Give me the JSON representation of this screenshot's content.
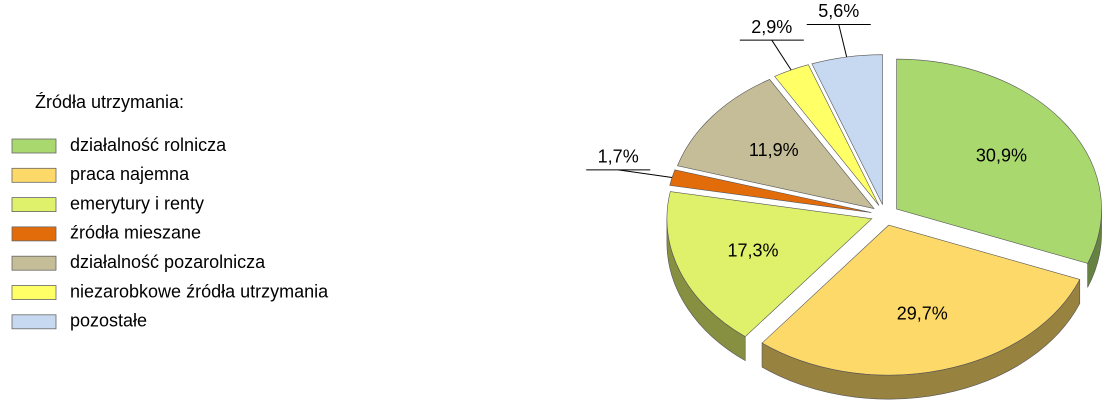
{
  "chart_data": {
    "type": "pie",
    "legend_title": "Źródła utrzymania:",
    "categories": [
      "działalność rolnicza",
      "praca najemna",
      "emerytury i renty",
      "źródła mieszane",
      "działalność pozarolnicza",
      "niezarobkowe źródła utrzymania",
      "pozostałe"
    ],
    "values": [
      30.9,
      29.7,
      17.3,
      1.7,
      11.9,
      2.9,
      5.6
    ],
    "value_labels": [
      "30,9%",
      "29,7%",
      "17,3%",
      "1,7%",
      "11,9%",
      "2,9%",
      "5,6%"
    ],
    "colors": [
      "#a9d86e",
      "#fdd96a",
      "#dff06a",
      "#e36c0a",
      "#c4bd97",
      "#ffff66",
      "#c6d9f1"
    ],
    "legend": "left"
  }
}
